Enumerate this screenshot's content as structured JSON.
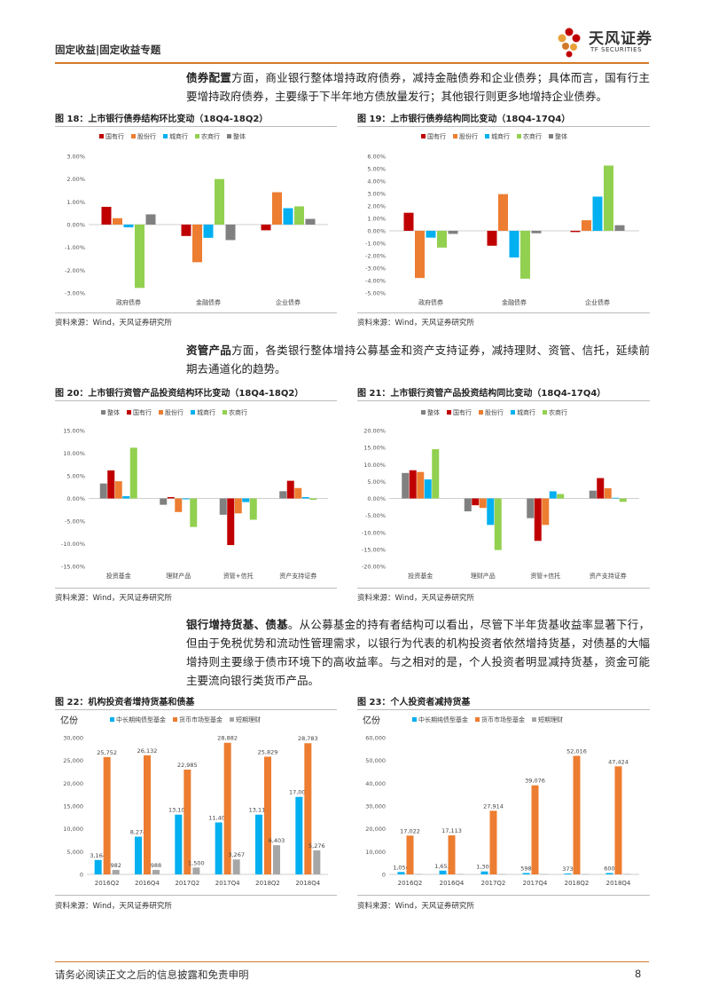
{
  "header": {
    "title": "固定收益|固定收益专题",
    "logo_cn": "天风证券",
    "logo_en": "TF SECURITIES"
  },
  "paragraphs": {
    "p1_bold": "债券配置",
    "p1_text": "方面，商业银行整体增持政府债券，减持金融债券和企业债券；具体而言，国有行主要增持政府债券，主要缘于下半年地方债放量发行；其他银行则更多地增持企业债券。",
    "p2_bold": "资管产品",
    "p2_text": "方面，各类银行整体增持公募基金和资产支持证券，减持理财、资管、信托，延续前期去通道化的趋势。",
    "p3_bold": "银行增持货基、债基",
    "p3_text": "。从公募基金的持有者结构可以看出，尽管下半年货基收益率显著下行，但由于免税优势和流动性管理需求，以银行为代表的机构投资者依然增持货基，对债基的大幅增持则主要缘于债市环境下的高收益率。与之相对的是，个人投资者明显减持货基，资金可能主要流向银行类货币产品。"
  },
  "colors": {
    "accent": "#d27a2a",
    "red": "#c00000",
    "orange": "#ed7d31",
    "blue": "#00b0f0",
    "green": "#92d050",
    "gray": "#808080",
    "blue2": "#0070c0",
    "gray2": "#a6a6a6"
  },
  "source_text": "资料来源：Wind，天风证券研究所",
  "footer": {
    "disclaimer": "请务必阅读正文之后的信息披露和免责申明",
    "page": "8"
  },
  "chart_data": [
    {
      "id": "fig18",
      "title": "图 18：上市银行债券结构环比变动（18Q4-18Q2）",
      "type": "bar",
      "categories": [
        "政府债券",
        "金融债券",
        "企业债券"
      ],
      "ylim": [
        -3.0,
        3.0
      ],
      "ticks": [
        3.0,
        2.0,
        1.0,
        0.0,
        -1.0,
        -2.0,
        -3.0
      ],
      "tick_labels": [
        "3.00%",
        "2.00%",
        "1.00%",
        "0.00%",
        "-1.00%",
        "-2.00%",
        "-3.00%"
      ],
      "series": [
        {
          "name": "国有行",
          "color": "#c00000",
          "values": [
            0.78,
            -0.5,
            -0.25
          ]
        },
        {
          "name": "股份行",
          "color": "#ed7d31",
          "values": [
            0.28,
            -1.65,
            1.42
          ]
        },
        {
          "name": "城商行",
          "color": "#00b0f0",
          "values": [
            -0.12,
            -0.58,
            0.72
          ]
        },
        {
          "name": "农商行",
          "color": "#92d050",
          "values": [
            -2.78,
            2.0,
            0.8
          ]
        },
        {
          "name": "整体",
          "color": "#808080",
          "values": [
            0.45,
            -0.68,
            0.25
          ]
        }
      ]
    },
    {
      "id": "fig19",
      "title": "图 19：上市银行债券结构同比变动（18Q4-17Q4）",
      "type": "bar",
      "categories": [
        "政府债券",
        "金融债券",
        "企业债券"
      ],
      "ylim": [
        -5.0,
        6.0
      ],
      "ticks": [
        6.0,
        5.0,
        4.0,
        3.0,
        2.0,
        1.0,
        0.0,
        -1.0,
        -2.0,
        -3.0,
        -4.0,
        -5.0
      ],
      "tick_labels": [
        "6.00%",
        "5.00%",
        "4.00%",
        "3.00%",
        "2.00%",
        "1.00%",
        "0.00%",
        "-1.00%",
        "-2.00%",
        "-3.00%",
        "-4.00%",
        "-5.00%"
      ],
      "series": [
        {
          "name": "国有行",
          "color": "#c00000",
          "values": [
            1.45,
            -1.2,
            -0.1
          ]
        },
        {
          "name": "股份行",
          "color": "#ed7d31",
          "values": [
            -3.8,
            2.95,
            0.85
          ]
        },
        {
          "name": "城商行",
          "color": "#00b0f0",
          "values": [
            -0.55,
            -2.15,
            2.75
          ]
        },
        {
          "name": "农商行",
          "color": "#92d050",
          "values": [
            -1.35,
            -3.85,
            5.25
          ]
        },
        {
          "name": "整体",
          "color": "#808080",
          "values": [
            -0.25,
            -0.2,
            0.45
          ]
        }
      ]
    },
    {
      "id": "fig20",
      "title": "图 20：上市银行资管产品投资结构环比变动（18Q4-18Q2）",
      "type": "bar",
      "categories": [
        "投资基金",
        "理财产品",
        "资管+信托",
        "资产支持证券"
      ],
      "ylim": [
        -15.0,
        15.0
      ],
      "ticks": [
        15.0,
        10.0,
        5.0,
        0.0,
        -5.0,
        -10.0,
        -15.0
      ],
      "tick_labels": [
        "15.00%",
        "10.00%",
        "5.00%",
        "0.00%",
        "-5.00%",
        "-10.00%",
        "-15.00%"
      ],
      "series": [
        {
          "name": "整体",
          "color": "#808080",
          "values": [
            3.3,
            -1.4,
            -3.6,
            1.6
          ]
        },
        {
          "name": "国有行",
          "color": "#c00000",
          "values": [
            6.2,
            0.3,
            -10.3,
            3.9
          ]
        },
        {
          "name": "股份行",
          "color": "#ed7d31",
          "values": [
            3.8,
            -3.0,
            -3.3,
            2.3
          ]
        },
        {
          "name": "城商行",
          "color": "#00b0f0",
          "values": [
            0.5,
            -0.2,
            -0.8,
            0.3
          ]
        },
        {
          "name": "农商行",
          "color": "#92d050",
          "values": [
            11.2,
            -6.3,
            -4.7,
            -0.3
          ]
        }
      ]
    },
    {
      "id": "fig21",
      "title": "图 21：上市银行资管产品投资结构同比变动（18Q4-17Q4）",
      "type": "bar",
      "categories": [
        "投资基金",
        "理财产品",
        "资管+信托",
        "资产支持证券"
      ],
      "ylim": [
        -20.0,
        20.0
      ],
      "ticks": [
        20.0,
        15.0,
        10.0,
        5.0,
        0.0,
        -5.0,
        -10.0,
        -15.0,
        -20.0
      ],
      "tick_labels": [
        "20.00%",
        "15.00%",
        "10.00%",
        "5.00%",
        "0.00%",
        "-5.00%",
        "-10.00%",
        "-15.00%",
        "-20.00%"
      ],
      "series": [
        {
          "name": "整体",
          "color": "#808080",
          "values": [
            7.5,
            -3.8,
            -5.8,
            2.3
          ]
        },
        {
          "name": "国有行",
          "color": "#c00000",
          "values": [
            8.3,
            -2.0,
            -12.5,
            6.0
          ]
        },
        {
          "name": "股份行",
          "color": "#ed7d31",
          "values": [
            7.8,
            -2.8,
            -7.8,
            3.0
          ]
        },
        {
          "name": "城商行",
          "color": "#00b0f0",
          "values": [
            5.6,
            -7.8,
            2.1,
            0.2
          ]
        },
        {
          "name": "农商行",
          "color": "#92d050",
          "values": [
            14.5,
            -15.2,
            1.3,
            -1.0
          ]
        }
      ]
    },
    {
      "id": "fig22",
      "title": "图 22：机构投资者增持货基和债基",
      "type": "bar",
      "unit": "亿份",
      "categories": [
        "2016Q2",
        "2016Q4",
        "2017Q2",
        "2017Q4",
        "2018Q2",
        "2018Q4"
      ],
      "ylim": [
        0,
        30000
      ],
      "ticks": [
        30000,
        25000,
        20000,
        15000,
        10000,
        5000,
        0
      ],
      "tick_labels": [
        "30,000",
        "25,000",
        "20,000",
        "15,000",
        "10,000",
        "5,000",
        "0"
      ],
      "series": [
        {
          "name": "中长期纯债型基金",
          "color": "#00b0f0",
          "values": [
            3164,
            8274,
            13107,
            11405,
            13110,
            17005
          ],
          "labels": [
            "3,164",
            "8,274",
            "13,107",
            "11,405",
            "13,110",
            "17,005"
          ]
        },
        {
          "name": "货币市场型基金",
          "color": "#ed7d31",
          "values": [
            25752,
            26132,
            22985,
            28882,
            25829,
            28783
          ],
          "labels": [
            "25,752",
            "26,132",
            "22,985",
            "28,882",
            "25,829",
            "28,783"
          ]
        },
        {
          "name": "短期理财",
          "color": "#a6a6a6",
          "values": [
            982,
            988,
            1500,
            3267,
            6403,
            5276
          ],
          "labels": [
            "982",
            "988",
            "1,500",
            "3,267",
            "6,403",
            "5,276"
          ]
        }
      ]
    },
    {
      "id": "fig23",
      "title": "图 23：个人投资者减持货基",
      "type": "bar",
      "unit": "亿份",
      "categories": [
        "2016Q2",
        "2016Q4",
        "2017Q2",
        "2017Q4",
        "2018Q2",
        "2018Q4"
      ],
      "ylim": [
        0,
        60000
      ],
      "ticks": [
        60000,
        50000,
        40000,
        30000,
        20000,
        10000,
        0
      ],
      "tick_labels": [
        "60,000",
        "50,000",
        "40,000",
        "30,000",
        "20,000",
        "10,000",
        "0"
      ],
      "series": [
        {
          "name": "中长期纯债型基金",
          "color": "#00b0f0",
          "values": [
            1056,
            1653,
            1305,
            598,
            373,
            600
          ],
          "labels": [
            "1,056",
            "1,653",
            "1,305",
            "598",
            "373",
            "600"
          ]
        },
        {
          "name": "货币市场型基金",
          "color": "#ed7d31",
          "values": [
            17022,
            17113,
            27914,
            39076,
            52016,
            47424
          ],
          "labels": [
            "17,022",
            "17,113",
            "27,914",
            "39,076",
            "52,016",
            "47,424"
          ]
        },
        {
          "name": "短期理财",
          "color": "#a6a6a6",
          "values": [
            150,
            120,
            100,
            120,
            120,
            200
          ],
          "labels": []
        }
      ]
    }
  ]
}
